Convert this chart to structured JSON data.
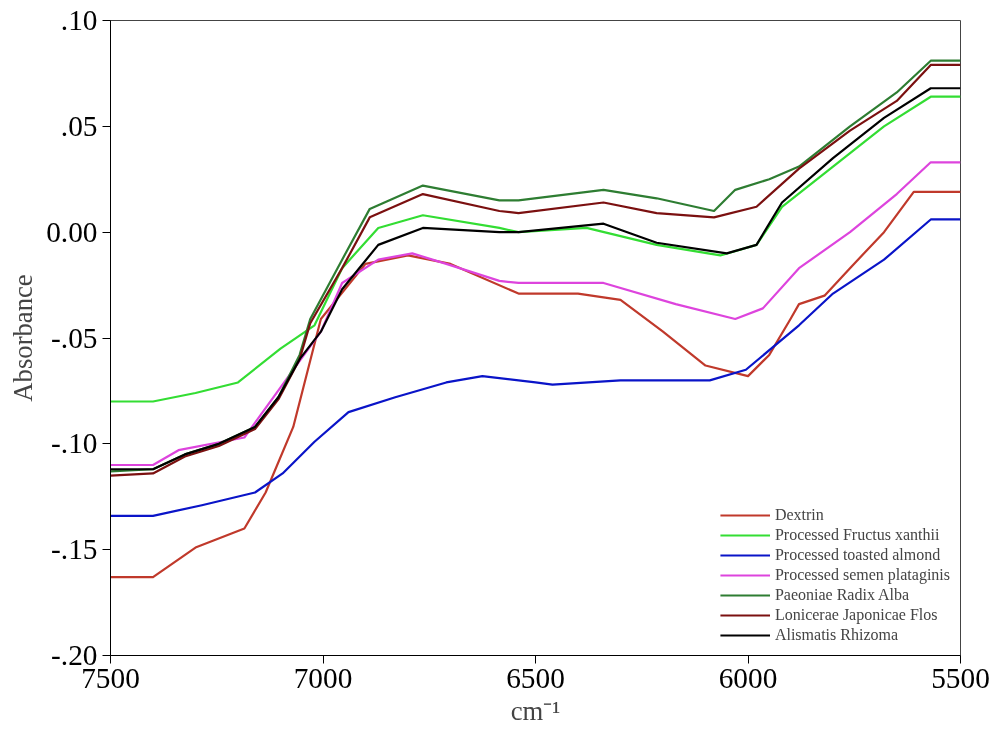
{
  "chart_data": {
    "type": "line",
    "xlabel": "cm⁻¹",
    "ylabel": "Absorbance",
    "xlim": [
      7500,
      5500
    ],
    "xticks": [
      7500,
      7000,
      6500,
      6000,
      5500
    ],
    "ylim": [
      -0.2,
      0.1
    ],
    "yticks": [
      {
        "value": -0.2,
        "label": "-.20"
      },
      {
        "value": -0.15,
        "label": "-.15"
      },
      {
        "value": -0.1,
        "label": "-.10"
      },
      {
        "value": -0.05,
        "label": "-.05"
      },
      {
        "value": 0,
        "label": "0.00"
      },
      {
        "value": 0.05,
        "label": ".05"
      },
      {
        "value": 0.1,
        "label": ".10"
      }
    ],
    "grid": false,
    "legend": "bottom right",
    "marker": "none",
    "line_style": "solid",
    "series": [
      {
        "name": "Dextrin",
        "color": "#c0392b",
        "x": [
          7500,
          7400,
          7300,
          7185,
          7135,
          7070,
          7005,
          6900,
          6800,
          6700,
          6540,
          6400,
          6300,
          6200,
          6100,
          6000,
          5950,
          5900,
          5880,
          5820,
          5760,
          5680,
          5610,
          5500
        ],
        "values": [
          -0.163,
          -0.163,
          -0.149,
          -0.14,
          -0.123,
          -0.092,
          -0.041,
          -0.015,
          -0.011,
          -0.015,
          -0.029,
          -0.029,
          -0.032,
          -0.047,
          -0.063,
          -0.068,
          -0.058,
          -0.041,
          -0.034,
          -0.03,
          -0.017,
          0.0,
          0.019,
          0.019
        ]
      },
      {
        "name": "Processed Fructus xanthii",
        "color": "#33dd33",
        "x": [
          7500,
          7400,
          7300,
          7200,
          7100,
          7020,
          6955,
          6870,
          6765,
          6585,
          6540,
          6380,
          6215,
          6065,
          5980,
          5920,
          5800,
          5680,
          5570,
          5500
        ],
        "values": [
          -0.08,
          -0.08,
          -0.076,
          -0.071,
          -0.055,
          -0.044,
          -0.017,
          0.002,
          0.008,
          0.002,
          0.0,
          0.002,
          -0.006,
          -0.011,
          -0.006,
          0.012,
          0.031,
          0.05,
          0.064,
          0.064
        ]
      },
      {
        "name": "Processed toasted almond",
        "color": "#0a14c8",
        "x": [
          7500,
          7400,
          7285,
          7160,
          7095,
          7020,
          6940,
          6830,
          6710,
          6625,
          6500,
          6460,
          6300,
          6090,
          6005,
          5880,
          5800,
          5680,
          5570,
          5500
        ],
        "values": [
          -0.134,
          -0.134,
          -0.129,
          -0.123,
          -0.114,
          -0.099,
          -0.085,
          -0.078,
          -0.071,
          -0.068,
          -0.071,
          -0.072,
          -0.07,
          -0.07,
          -0.065,
          -0.044,
          -0.029,
          -0.013,
          0.006,
          0.006
        ]
      },
      {
        "name": "Processed semen plataginis",
        "color": "#dd44dd",
        "x": [
          7500,
          7400,
          7340,
          7185,
          7005,
          6955,
          6870,
          6790,
          6710,
          6585,
          6540,
          6340,
          6170,
          6030,
          5965,
          5880,
          5760,
          5650,
          5570,
          5500
        ],
        "values": [
          -0.11,
          -0.11,
          -0.103,
          -0.097,
          -0.047,
          -0.024,
          -0.013,
          -0.01,
          -0.015,
          -0.023,
          -0.024,
          -0.024,
          -0.034,
          -0.041,
          -0.036,
          -0.017,
          0.0,
          0.018,
          0.033,
          0.033
        ]
      },
      {
        "name": "Paeoniae Radix Alba",
        "color": "#2e7d32",
        "x": [
          7500,
          7400,
          7325,
          7245,
          7160,
          7105,
          7055,
          7030,
          6955,
          6890,
          6765,
          6585,
          6540,
          6340,
          6215,
          6080,
          6030,
          5950,
          5880,
          5760,
          5650,
          5570,
          5500
        ],
        "values": [
          -0.113,
          -0.112,
          -0.105,
          -0.1,
          -0.092,
          -0.078,
          -0.058,
          -0.041,
          -0.013,
          0.011,
          0.022,
          0.015,
          0.015,
          0.02,
          0.016,
          0.01,
          0.02,
          0.025,
          0.031,
          0.05,
          0.066,
          0.081,
          0.081
        ]
      },
      {
        "name": "Lonicerae Japonicae Flos",
        "color": "#7b1010",
        "x": [
          7500,
          7400,
          7325,
          7245,
          7160,
          7105,
          7055,
          7030,
          6955,
          6890,
          6765,
          6585,
          6540,
          6340,
          6215,
          6080,
          5980,
          5880,
          5760,
          5650,
          5570,
          5500
        ],
        "values": [
          -0.115,
          -0.114,
          -0.106,
          -0.101,
          -0.093,
          -0.079,
          -0.06,
          -0.043,
          -0.017,
          0.007,
          0.018,
          0.01,
          0.009,
          0.014,
          0.009,
          0.007,
          0.012,
          0.03,
          0.048,
          0.062,
          0.079,
          0.079
        ]
      },
      {
        "name": "Alismatis Rhizoma",
        "color": "#000000",
        "x": [
          7500,
          7400,
          7325,
          7245,
          7160,
          7105,
          7055,
          7005,
          6955,
          6870,
          6765,
          6585,
          6540,
          6340,
          6215,
          6050,
          5980,
          5920,
          5800,
          5680,
          5570,
          5500
        ],
        "values": [
          -0.112,
          -0.112,
          -0.105,
          -0.1,
          -0.092,
          -0.078,
          -0.06,
          -0.047,
          -0.027,
          -0.006,
          0.002,
          0.0,
          0.0,
          0.004,
          -0.005,
          -0.01,
          -0.006,
          0.014,
          0.035,
          0.054,
          0.068,
          0.068
        ]
      }
    ]
  }
}
